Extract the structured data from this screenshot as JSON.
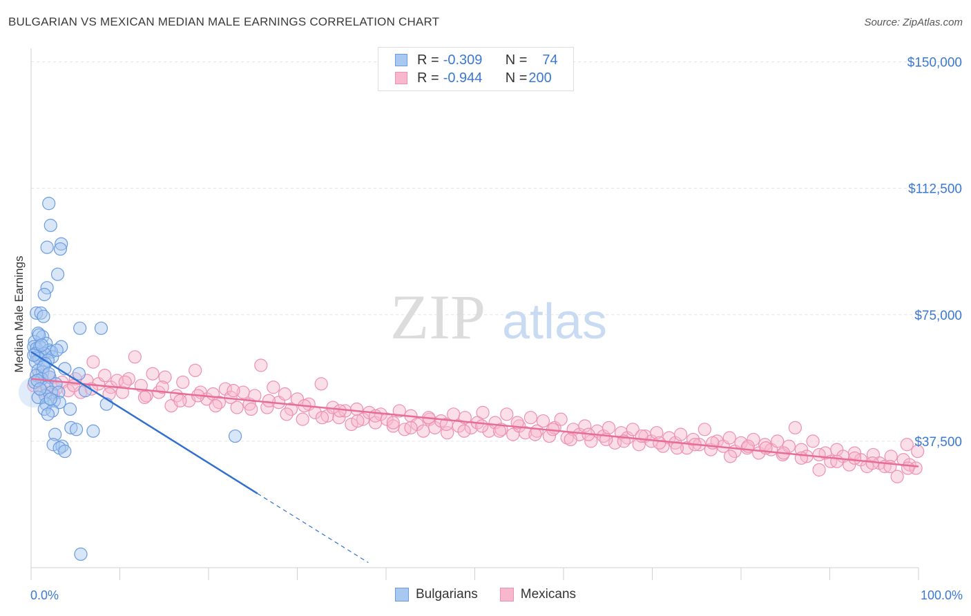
{
  "title": "BULGARIAN VS MEXICAN MEDIAN MALE EARNINGS CORRELATION CHART",
  "source": "Source: ZipAtlas.com",
  "watermark": {
    "zip": "ZIP",
    "atlas": "atlas"
  },
  "legend_top": [
    {
      "r_label": "R = ",
      "r_value": "-0.309",
      "n_label": "N = ",
      "n_value": "74"
    },
    {
      "r_label": "R = ",
      "r_value": "-0.944",
      "n_label": "N = ",
      "n_value": "200"
    }
  ],
  "legend_bottom": [
    "Bulgarians",
    "Mexicans"
  ],
  "x_axis": {
    "min_label": "0.0%",
    "max_label": "100.0%"
  },
  "colors": {
    "blue_fill": "#a9c8f0",
    "blue_stroke": "#6a9be0",
    "blue_line": "#2f6fd0",
    "pink_fill": "#f7b8cd",
    "pink_stroke": "#ee8fb0",
    "pink_line": "#e86c98",
    "tick_text": "#3a78d4",
    "grid": "#e3e3e3"
  },
  "chart_data": {
    "type": "scatter",
    "title": "BULGARIAN VS MEXICAN MEDIAN MALE EARNINGS CORRELATION CHART",
    "xlabel": "",
    "ylabel": "Median Male Earnings",
    "xlim": [
      0,
      100
    ],
    "ylim": [
      0,
      154000
    ],
    "y_ticks": [
      37500,
      75000,
      112500,
      150000
    ],
    "y_tick_labels": [
      "$37,500",
      "$75,000",
      "$112,500",
      "$150,000"
    ],
    "series": [
      {
        "name": "Bulgarians",
        "r": -0.309,
        "n": 74,
        "trend": {
          "x0": 0,
          "y0": 64000,
          "x1": 25.5,
          "y1": 22000,
          "dash_to_x": 38,
          "dash_to_y": 1500
        },
        "points": [
          [
            2.0,
            108000
          ],
          [
            2.2,
            101500
          ],
          [
            1.8,
            95000
          ],
          [
            3.4,
            96000
          ],
          [
            3.3,
            94500
          ],
          [
            3.0,
            87000
          ],
          [
            1.8,
            83000
          ],
          [
            1.5,
            81000
          ],
          [
            0.6,
            75500
          ],
          [
            1.1,
            75500
          ],
          [
            1.4,
            74500
          ],
          [
            5.5,
            71000
          ],
          [
            7.9,
            71000
          ],
          [
            0.8,
            69500
          ],
          [
            1.3,
            68500
          ],
          [
            0.4,
            67000
          ],
          [
            1.7,
            66500
          ],
          [
            3.4,
            65500
          ],
          [
            0.3,
            65500
          ],
          [
            0.6,
            65000
          ],
          [
            1.0,
            65500
          ],
          [
            2.0,
            64500
          ],
          [
            2.3,
            64000
          ],
          [
            0.5,
            63500
          ],
          [
            1.1,
            63000
          ],
          [
            1.5,
            63500
          ],
          [
            2.4,
            62500
          ],
          [
            0.7,
            62500
          ],
          [
            0.9,
            62000
          ],
          [
            1.9,
            61500
          ],
          [
            0.5,
            61000
          ],
          [
            1.6,
            60500
          ],
          [
            3.8,
            59000
          ],
          [
            0.8,
            58500
          ],
          [
            1.3,
            58000
          ],
          [
            5.4,
            57500
          ],
          [
            0.6,
            57000
          ],
          [
            2.1,
            56500
          ],
          [
            1.2,
            56000
          ],
          [
            0.4,
            55000
          ],
          [
            2.8,
            54500
          ],
          [
            1.8,
            53500
          ],
          [
            6.1,
            52500
          ],
          [
            2.3,
            52000
          ],
          [
            3.1,
            52000
          ],
          [
            1.6,
            51000
          ],
          [
            0.8,
            50500
          ],
          [
            2.6,
            49500
          ],
          [
            3.2,
            49000
          ],
          [
            1.7,
            48500
          ],
          [
            8.5,
            48500
          ],
          [
            1.5,
            47000
          ],
          [
            2.4,
            46500
          ],
          [
            4.4,
            47000
          ],
          [
            1.9,
            45500
          ],
          [
            4.5,
            41500
          ],
          [
            5.1,
            41000
          ],
          [
            7.0,
            40500
          ],
          [
            2.7,
            39500
          ],
          [
            23.0,
            39000
          ],
          [
            2.5,
            36500
          ],
          [
            3.5,
            36000
          ],
          [
            3.2,
            35500
          ],
          [
            3.8,
            34500
          ],
          [
            5.6,
            4000
          ],
          [
            0.9,
            69000
          ],
          [
            1.2,
            66000
          ],
          [
            2.9,
            64500
          ],
          [
            0.3,
            63000
          ],
          [
            1.4,
            59500
          ],
          [
            2.0,
            57500
          ],
          [
            0.7,
            55500
          ],
          [
            1.0,
            53000
          ],
          [
            2.2,
            50000
          ]
        ]
      },
      {
        "name": "Mexicans",
        "r": -0.944,
        "n": 200,
        "trend": {
          "x0": 0,
          "y0": 56000,
          "x1": 100,
          "y1": 30000
        },
        "points": [
          [
            0.3,
            54000
          ],
          [
            0.9,
            57000
          ],
          [
            1.5,
            55000
          ],
          [
            2.1,
            56500
          ],
          [
            2.8,
            53000
          ],
          [
            3.5,
            55000
          ],
          [
            4.2,
            52500
          ],
          [
            5.0,
            56000
          ],
          [
            5.6,
            52000
          ],
          [
            6.3,
            55500
          ],
          [
            7.0,
            61000
          ],
          [
            7.6,
            54500
          ],
          [
            8.3,
            57000
          ],
          [
            9.0,
            53500
          ],
          [
            9.7,
            55500
          ],
          [
            10.3,
            52000
          ],
          [
            11.0,
            56000
          ],
          [
            11.7,
            62500
          ],
          [
            12.4,
            54000
          ],
          [
            13.0,
            51000
          ],
          [
            13.7,
            57500
          ],
          [
            14.4,
            52000
          ],
          [
            15.1,
            56500
          ],
          [
            15.8,
            48000
          ],
          [
            16.4,
            51000
          ],
          [
            17.1,
            55000
          ],
          [
            17.8,
            49500
          ],
          [
            18.5,
            58500
          ],
          [
            19.1,
            52000
          ],
          [
            19.8,
            50000
          ],
          [
            20.5,
            51500
          ],
          [
            21.2,
            49000
          ],
          [
            21.9,
            53000
          ],
          [
            22.5,
            50500
          ],
          [
            23.2,
            47500
          ],
          [
            23.9,
            52000
          ],
          [
            24.6,
            48500
          ],
          [
            25.2,
            51000
          ],
          [
            25.9,
            60000
          ],
          [
            26.6,
            47500
          ],
          [
            27.3,
            53500
          ],
          [
            27.9,
            49000
          ],
          [
            28.6,
            51500
          ],
          [
            29.3,
            47000
          ],
          [
            30.0,
            50000
          ],
          [
            30.6,
            44000
          ],
          [
            31.3,
            48500
          ],
          [
            32.0,
            46000
          ],
          [
            32.7,
            54500
          ],
          [
            33.4,
            45000
          ],
          [
            34.0,
            47500
          ],
          [
            34.7,
            44500
          ],
          [
            35.4,
            46500
          ],
          [
            36.1,
            42500
          ],
          [
            36.7,
            47000
          ],
          [
            37.4,
            44000
          ],
          [
            38.1,
            46000
          ],
          [
            38.8,
            43000
          ],
          [
            39.4,
            45500
          ],
          [
            40.1,
            44000
          ],
          [
            40.8,
            42000
          ],
          [
            41.5,
            46500
          ],
          [
            42.1,
            41000
          ],
          [
            42.8,
            45000
          ],
          [
            43.5,
            42500
          ],
          [
            44.2,
            40500
          ],
          [
            44.9,
            44000
          ],
          [
            45.5,
            41500
          ],
          [
            46.2,
            43500
          ],
          [
            46.9,
            40000
          ],
          [
            47.6,
            45500
          ],
          [
            48.2,
            42000
          ],
          [
            48.9,
            44500
          ],
          [
            49.6,
            41500
          ],
          [
            50.3,
            43000
          ],
          [
            50.9,
            46000
          ],
          [
            51.6,
            40500
          ],
          [
            52.3,
            43000
          ],
          [
            53.0,
            41000
          ],
          [
            53.6,
            45500
          ],
          [
            54.3,
            39500
          ],
          [
            55.0,
            42000
          ],
          [
            55.7,
            40000
          ],
          [
            56.3,
            44500
          ],
          [
            57.0,
            40500
          ],
          [
            57.7,
            43500
          ],
          [
            58.4,
            39000
          ],
          [
            59.0,
            41500
          ],
          [
            59.7,
            44000
          ],
          [
            60.4,
            38500
          ],
          [
            61.1,
            41000
          ],
          [
            61.8,
            39500
          ],
          [
            62.4,
            42000
          ],
          [
            63.1,
            37500
          ],
          [
            63.8,
            40500
          ],
          [
            64.5,
            39000
          ],
          [
            65.1,
            41500
          ],
          [
            65.8,
            37000
          ],
          [
            66.5,
            40000
          ],
          [
            67.2,
            38500
          ],
          [
            67.8,
            41000
          ],
          [
            68.5,
            36500
          ],
          [
            69.2,
            39000
          ],
          [
            69.9,
            37500
          ],
          [
            70.5,
            40000
          ],
          [
            71.2,
            36000
          ],
          [
            71.9,
            38500
          ],
          [
            72.6,
            37000
          ],
          [
            73.2,
            39500
          ],
          [
            73.9,
            35500
          ],
          [
            74.6,
            38000
          ],
          [
            75.3,
            36500
          ],
          [
            75.9,
            41000
          ],
          [
            76.6,
            35000
          ],
          [
            77.3,
            37500
          ],
          [
            78.0,
            36000
          ],
          [
            78.7,
            38500
          ],
          [
            79.3,
            34500
          ],
          [
            80.0,
            37000
          ],
          [
            80.7,
            35500
          ],
          [
            81.4,
            38000
          ],
          [
            82.0,
            34000
          ],
          [
            82.7,
            36500
          ],
          [
            83.4,
            35000
          ],
          [
            84.1,
            37500
          ],
          [
            84.7,
            33500
          ],
          [
            85.4,
            36000
          ],
          [
            86.1,
            41500
          ],
          [
            86.8,
            35000
          ],
          [
            87.4,
            33000
          ],
          [
            88.1,
            37500
          ],
          [
            88.8,
            29000
          ],
          [
            89.5,
            34000
          ],
          [
            90.1,
            31500
          ],
          [
            90.8,
            35000
          ],
          [
            91.5,
            33000
          ],
          [
            92.2,
            30500
          ],
          [
            92.8,
            34000
          ],
          [
            93.5,
            32000
          ],
          [
            94.2,
            30000
          ],
          [
            94.9,
            33500
          ],
          [
            95.6,
            31000
          ],
          [
            96.2,
            30000
          ],
          [
            96.9,
            33000
          ],
          [
            97.6,
            27000
          ],
          [
            98.3,
            32000
          ],
          [
            99.0,
            30500
          ],
          [
            99.7,
            29500
          ],
          [
            98.7,
            36500
          ],
          [
            99.9,
            34500
          ],
          [
            1.2,
            52500
          ],
          [
            2.5,
            51500
          ],
          [
            4.8,
            54000
          ],
          [
            6.8,
            53000
          ],
          [
            8.8,
            51500
          ],
          [
            10.6,
            55000
          ],
          [
            12.8,
            50500
          ],
          [
            14.8,
            53500
          ],
          [
            16.8,
            49500
          ],
          [
            18.8,
            51000
          ],
          [
            20.8,
            48000
          ],
          [
            22.8,
            52500
          ],
          [
            24.8,
            47000
          ],
          [
            26.8,
            49500
          ],
          [
            28.8,
            45500
          ],
          [
            30.8,
            48000
          ],
          [
            32.8,
            44500
          ],
          [
            34.8,
            46500
          ],
          [
            36.8,
            43500
          ],
          [
            38.8,
            45000
          ],
          [
            40.8,
            43000
          ],
          [
            42.8,
            41500
          ],
          [
            44.8,
            44500
          ],
          [
            46.8,
            42500
          ],
          [
            48.8,
            40500
          ],
          [
            50.8,
            42000
          ],
          [
            52.8,
            40500
          ],
          [
            54.8,
            43000
          ],
          [
            56.8,
            39500
          ],
          [
            58.8,
            41000
          ],
          [
            60.8,
            38000
          ],
          [
            62.8,
            39500
          ],
          [
            64.8,
            38000
          ],
          [
            66.8,
            37500
          ],
          [
            68.8,
            39000
          ],
          [
            70.8,
            37000
          ],
          [
            72.8,
            35500
          ],
          [
            74.8,
            36500
          ],
          [
            76.8,
            37000
          ],
          [
            78.8,
            33000
          ],
          [
            80.8,
            36000
          ],
          [
            82.8,
            35500
          ],
          [
            84.8,
            34000
          ],
          [
            86.8,
            32500
          ],
          [
            88.8,
            33500
          ],
          [
            90.8,
            31500
          ],
          [
            92.8,
            32500
          ],
          [
            94.8,
            31000
          ],
          [
            96.8,
            30000
          ],
          [
            98.8,
            29500
          ]
        ]
      }
    ]
  }
}
